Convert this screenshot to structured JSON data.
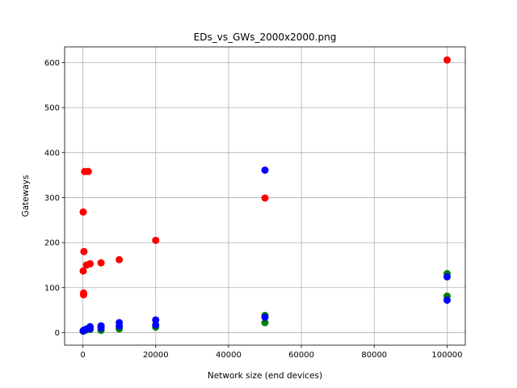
{
  "chart_data": {
    "type": "scatter",
    "title": "EDs_vs_GWs_2000x2000.png",
    "xlabel": "Network size (end devices)",
    "ylabel": "Gateways",
    "xlim": [
      -5000,
      105000
    ],
    "ylim": [
      -28,
      635
    ],
    "xticks": [
      0,
      20000,
      40000,
      60000,
      80000,
      100000
    ],
    "yticks": [
      0,
      100,
      200,
      300,
      400,
      500,
      600
    ],
    "grid": true,
    "series": [
      {
        "color": "#ff0000",
        "points": [
          [
            100,
            268
          ],
          [
            100,
            137
          ],
          [
            200,
            88
          ],
          [
            200,
            84
          ],
          [
            300,
            180
          ],
          [
            500,
            358
          ],
          [
            1000,
            150
          ],
          [
            1500,
            358
          ],
          [
            2000,
            153
          ],
          [
            5000,
            155
          ],
          [
            10000,
            162
          ],
          [
            20000,
            205
          ],
          [
            50000,
            299
          ],
          [
            100000,
            606
          ]
        ]
      },
      {
        "color": "#008000",
        "points": [
          [
            100,
            3
          ],
          [
            200,
            4
          ],
          [
            500,
            5
          ],
          [
            1000,
            6
          ],
          [
            2000,
            7
          ],
          [
            5000,
            5
          ],
          [
            10000,
            8
          ],
          [
            20000,
            12
          ],
          [
            50000,
            22
          ],
          [
            50000,
            38
          ],
          [
            100000,
            131
          ],
          [
            100000,
            81
          ]
        ]
      },
      {
        "color": "#0000ff",
        "points": [
          [
            100,
            4
          ],
          [
            200,
            5
          ],
          [
            500,
            6
          ],
          [
            1000,
            8
          ],
          [
            2000,
            9
          ],
          [
            2000,
            13
          ],
          [
            5000,
            10
          ],
          [
            5000,
            15
          ],
          [
            10000,
            14
          ],
          [
            10000,
            22
          ],
          [
            20000,
            17
          ],
          [
            20000,
            28
          ],
          [
            50000,
            34
          ],
          [
            50000,
            361
          ],
          [
            100000,
            124
          ],
          [
            100000,
            72
          ]
        ]
      }
    ]
  }
}
